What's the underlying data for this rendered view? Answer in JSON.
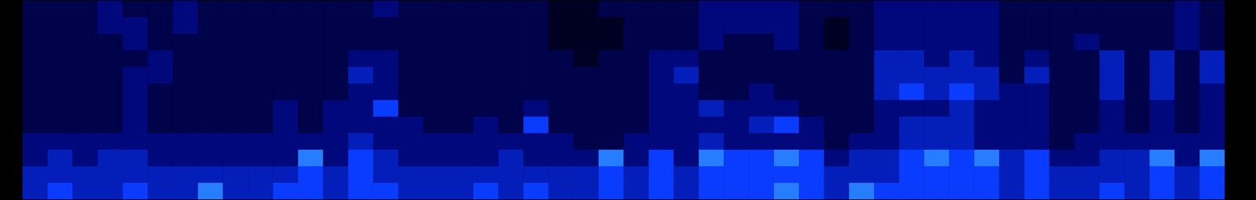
{
  "chart_data": {
    "type": "heatmap",
    "cells": [
      [
        2,
        2,
        2,
        3,
        2,
        2,
        3,
        2,
        2,
        2,
        2,
        2,
        2,
        2,
        3,
        2,
        2,
        2,
        2,
        2,
        2,
        1,
        1,
        2,
        2,
        2,
        2,
        3,
        3,
        3,
        3,
        2,
        2,
        2,
        3,
        3,
        3,
        3,
        3,
        2,
        2,
        2,
        2,
        2,
        2,
        2,
        3,
        2
      ],
      [
        2,
        2,
        2,
        3,
        3,
        2,
        3,
        2,
        2,
        2,
        2,
        2,
        2,
        2,
        2,
        2,
        2,
        2,
        2,
        2,
        2,
        1,
        1,
        1,
        2,
        2,
        2,
        3,
        3,
        3,
        3,
        2,
        1,
        2,
        3,
        3,
        3,
        3,
        3,
        2,
        2,
        2,
        2,
        2,
        2,
        2,
        3,
        2
      ],
      [
        2,
        2,
        2,
        2,
        3,
        2,
        2,
        2,
        2,
        2,
        2,
        2,
        2,
        2,
        2,
        2,
        2,
        2,
        2,
        2,
        2,
        1,
        1,
        1,
        2,
        2,
        2,
        3,
        2,
        2,
        3,
        2,
        1,
        2,
        3,
        3,
        3,
        3,
        3,
        2,
        2,
        2,
        3,
        2,
        2,
        2,
        3,
        2
      ],
      [
        2,
        2,
        2,
        2,
        2,
        3,
        2,
        2,
        2,
        2,
        2,
        2,
        2,
        3,
        3,
        2,
        2,
        2,
        2,
        2,
        2,
        2,
        1,
        2,
        2,
        3,
        3,
        2,
        2,
        2,
        2,
        2,
        2,
        2,
        4,
        4,
        3,
        4,
        3,
        2,
        3,
        2,
        2,
        4,
        2,
        4,
        2,
        4
      ],
      [
        2,
        2,
        2,
        2,
        3,
        3,
        2,
        2,
        2,
        2,
        2,
        2,
        2,
        4,
        3,
        2,
        2,
        2,
        2,
        2,
        2,
        2,
        2,
        2,
        2,
        3,
        4,
        2,
        2,
        2,
        2,
        2,
        2,
        2,
        4,
        4,
        4,
        4,
        4,
        2,
        4,
        2,
        2,
        4,
        2,
        4,
        2,
        4
      ],
      [
        2,
        2,
        2,
        2,
        3,
        2,
        2,
        2,
        2,
        2,
        2,
        2,
        2,
        3,
        3,
        2,
        2,
        2,
        2,
        2,
        2,
        2,
        2,
        2,
        2,
        3,
        3,
        2,
        2,
        3,
        2,
        2,
        2,
        2,
        4,
        5,
        4,
        5,
        4,
        3,
        3,
        2,
        2,
        4,
        2,
        4,
        2,
        3
      ],
      [
        2,
        2,
        2,
        2,
        3,
        2,
        2,
        2,
        2,
        2,
        3,
        2,
        3,
        3,
        5,
        2,
        2,
        2,
        2,
        2,
        3,
        2,
        2,
        2,
        2,
        3,
        3,
        4,
        3,
        3,
        3,
        2,
        2,
        2,
        3,
        3,
        3,
        4,
        3,
        3,
        3,
        2,
        2,
        3,
        2,
        3,
        2,
        3
      ],
      [
        2,
        2,
        2,
        2,
        3,
        2,
        2,
        2,
        2,
        2,
        3,
        2,
        3,
        3,
        3,
        3,
        2,
        2,
        3,
        2,
        5,
        2,
        2,
        2,
        2,
        3,
        3,
        3,
        3,
        4,
        5,
        3,
        2,
        2,
        3,
        4,
        4,
        4,
        3,
        3,
        3,
        2,
        2,
        3,
        2,
        3,
        2,
        3
      ],
      [
        3,
        3,
        3,
        3,
        3,
        3,
        3,
        3,
        3,
        3,
        3,
        3,
        3,
        4,
        3,
        3,
        3,
        3,
        3,
        3,
        3,
        3,
        2,
        2,
        3,
        3,
        3,
        4,
        3,
        3,
        3,
        3,
        2,
        3,
        3,
        4,
        4,
        4,
        3,
        3,
        3,
        2,
        3,
        3,
        3,
        3,
        3,
        3
      ],
      [
        3,
        4,
        3,
        4,
        4,
        3,
        3,
        3,
        3,
        3,
        3,
        6,
        3,
        5,
        4,
        3,
        3,
        3,
        3,
        4,
        3,
        3,
        3,
        6,
        3,
        5,
        3,
        6,
        5,
        5,
        6,
        5,
        3,
        4,
        4,
        5,
        6,
        5,
        6,
        4,
        5,
        3,
        3,
        4,
        4,
        6,
        3,
        6
      ],
      [
        4,
        4,
        4,
        4,
        4,
        4,
        4,
        4,
        4,
        4,
        4,
        5,
        4,
        5,
        4,
        4,
        4,
        4,
        4,
        4,
        4,
        4,
        4,
        5,
        4,
        5,
        4,
        5,
        5,
        5,
        5,
        5,
        4,
        4,
        4,
        5,
        5,
        5,
        5,
        4,
        5,
        4,
        4,
        4,
        4,
        5,
        4,
        5
      ],
      [
        4,
        5,
        4,
        4,
        5,
        4,
        4,
        6,
        4,
        4,
        5,
        5,
        4,
        5,
        5,
        4,
        4,
        4,
        5,
        4,
        5,
        4,
        4,
        5,
        4,
        5,
        4,
        5,
        5,
        5,
        6,
        5,
        4,
        6,
        5,
        5,
        5,
        5,
        5,
        4,
        5,
        4,
        4,
        5,
        4,
        5,
        4,
        5
      ]
    ],
    "color_range": [
      0,
      10
    ],
    "tick_labels": false
  }
}
